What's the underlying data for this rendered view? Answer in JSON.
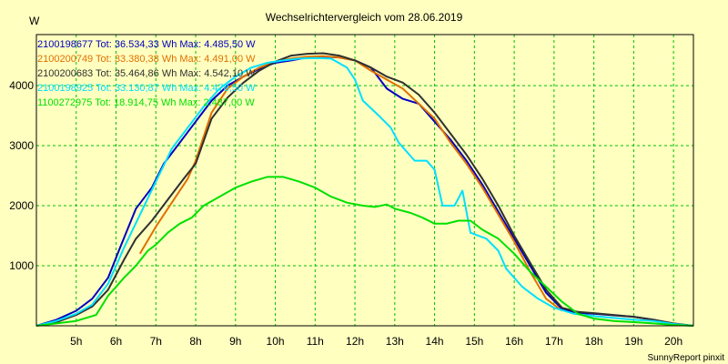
{
  "chart_data": {
    "type": "line",
    "title": "Wechselrichtervergleich vom 28.06.2019",
    "ylabel": "W",
    "xlabel": "",
    "footer": "SunnyReport pinxit",
    "xlim": [
      4.0,
      20.5
    ],
    "ylim": [
      0,
      4850
    ],
    "grid": true,
    "legend_position": "top-left",
    "x_ticks": [
      5,
      6,
      7,
      8,
      9,
      10,
      11,
      12,
      13,
      14,
      15,
      16,
      17,
      18,
      19,
      20
    ],
    "x_tick_labels": [
      "5h",
      "6h",
      "7h",
      "8h",
      "9h",
      "10h",
      "11h",
      "12h",
      "13h",
      "14h",
      "15h",
      "16h",
      "17h",
      "18h",
      "19h",
      "20h"
    ],
    "y_ticks": [
      1000,
      2000,
      3000,
      4000
    ],
    "y_tick_labels": [
      "1000",
      "2000",
      "3000",
      "4000"
    ],
    "series": [
      {
        "name": "2100198677",
        "legend": "2100198677 Tot: 36.534,33 Wh Max: 4.485,50 W",
        "color": "#0000c0",
        "points": [
          [
            4.0,
            0
          ],
          [
            4.5,
            100
          ],
          [
            5.0,
            250
          ],
          [
            5.4,
            450
          ],
          [
            5.8,
            800
          ],
          [
            6.1,
            1300
          ],
          [
            6.5,
            1950
          ],
          [
            6.9,
            2300
          ],
          [
            7.2,
            2700
          ],
          [
            7.6,
            3050
          ],
          [
            8.0,
            3400
          ],
          [
            8.4,
            3750
          ],
          [
            8.8,
            4000
          ],
          [
            9.2,
            4150
          ],
          [
            9.6,
            4280
          ],
          [
            10.0,
            4380
          ],
          [
            10.4,
            4420
          ],
          [
            10.8,
            4470
          ],
          [
            11.2,
            4480
          ],
          [
            11.6,
            4470
          ],
          [
            12.0,
            4420
          ],
          [
            12.4,
            4300
          ],
          [
            12.8,
            3950
          ],
          [
            13.2,
            3780
          ],
          [
            13.6,
            3700
          ],
          [
            14.0,
            3400
          ],
          [
            14.4,
            3100
          ],
          [
            14.8,
            2750
          ],
          [
            15.2,
            2350
          ],
          [
            15.6,
            1900
          ],
          [
            16.0,
            1450
          ],
          [
            16.4,
            1000
          ],
          [
            16.8,
            550
          ],
          [
            17.2,
            280
          ],
          [
            17.6,
            210
          ],
          [
            18.0,
            200
          ],
          [
            18.5,
            175
          ],
          [
            19.0,
            150
          ],
          [
            19.5,
            100
          ],
          [
            20.0,
            30
          ],
          [
            20.5,
            0
          ]
        ]
      },
      {
        "name": "2100200749",
        "legend": "2100200749 Tot: 33.380,38 Wh Max: 4.491,00 W",
        "color": "#e07000",
        "points": [
          [
            6.6,
            1200
          ],
          [
            7.0,
            1650
          ],
          [
            7.4,
            2050
          ],
          [
            7.8,
            2450
          ],
          [
            8.0,
            2750
          ],
          [
            8.4,
            3550
          ],
          [
            8.8,
            3950
          ],
          [
            9.2,
            4150
          ],
          [
            9.6,
            4300
          ],
          [
            10.0,
            4400
          ],
          [
            10.4,
            4450
          ],
          [
            10.8,
            4480
          ],
          [
            11.2,
            4490
          ],
          [
            11.6,
            4470
          ],
          [
            12.0,
            4420
          ],
          [
            12.4,
            4250
          ],
          [
            12.8,
            4100
          ],
          [
            13.2,
            3950
          ],
          [
            13.6,
            3700
          ],
          [
            14.0,
            3450
          ],
          [
            14.4,
            3050
          ],
          [
            14.8,
            2700
          ],
          [
            15.2,
            2300
          ],
          [
            15.6,
            1850
          ],
          [
            16.0,
            1400
          ],
          [
            16.4,
            900
          ],
          [
            16.8,
            450
          ],
          [
            17.2,
            250
          ]
        ]
      },
      {
        "name": "2100200683",
        "legend": "2100200683 Tot: 35.464,86 Wh Max: 4.542,10 W",
        "color": "#303030",
        "points": [
          [
            4.0,
            0
          ],
          [
            4.5,
            60
          ],
          [
            5.0,
            180
          ],
          [
            5.4,
            320
          ],
          [
            5.8,
            600
          ],
          [
            6.2,
            1100
          ],
          [
            6.5,
            1450
          ],
          [
            6.9,
            1750
          ],
          [
            7.3,
            2100
          ],
          [
            7.7,
            2450
          ],
          [
            8.0,
            2700
          ],
          [
            8.4,
            3450
          ],
          [
            8.8,
            3800
          ],
          [
            9.2,
            4050
          ],
          [
            9.6,
            4250
          ],
          [
            10.0,
            4400
          ],
          [
            10.4,
            4500
          ],
          [
            10.8,
            4530
          ],
          [
            11.2,
            4540
          ],
          [
            11.6,
            4500
          ],
          [
            12.0,
            4420
          ],
          [
            12.4,
            4300
          ],
          [
            12.8,
            4150
          ],
          [
            13.2,
            4050
          ],
          [
            13.6,
            3850
          ],
          [
            14.0,
            3550
          ],
          [
            14.4,
            3200
          ],
          [
            14.8,
            2850
          ],
          [
            15.2,
            2450
          ],
          [
            15.6,
            2000
          ],
          [
            16.0,
            1500
          ],
          [
            16.4,
            1050
          ],
          [
            16.8,
            600
          ],
          [
            17.2,
            300
          ],
          [
            17.6,
            230
          ],
          [
            18.0,
            210
          ],
          [
            18.5,
            180
          ],
          [
            19.0,
            150
          ],
          [
            19.5,
            100
          ],
          [
            20.0,
            40
          ],
          [
            20.5,
            0
          ]
        ]
      },
      {
        "name": "2100198925",
        "legend": "2100198925 Tot: 33.130,87 Wh Max: 4.478,50 W",
        "color": "#00e0ff",
        "points": [
          [
            4.0,
            0
          ],
          [
            4.5,
            80
          ],
          [
            5.0,
            200
          ],
          [
            5.4,
            350
          ],
          [
            5.8,
            700
          ],
          [
            6.2,
            1300
          ],
          [
            6.6,
            1850
          ],
          [
            7.0,
            2400
          ],
          [
            7.4,
            2950
          ],
          [
            7.8,
            3300
          ],
          [
            8.2,
            3650
          ],
          [
            8.6,
            3950
          ],
          [
            9.0,
            4150
          ],
          [
            9.4,
            4300
          ],
          [
            9.8,
            4380
          ],
          [
            10.2,
            4420
          ],
          [
            10.6,
            4450
          ],
          [
            11.0,
            4460
          ],
          [
            11.4,
            4450
          ],
          [
            11.8,
            4300
          ],
          [
            12.0,
            4100
          ],
          [
            12.2,
            3750
          ],
          [
            12.6,
            3500
          ],
          [
            12.9,
            3300
          ],
          [
            13.1,
            3050
          ],
          [
            13.5,
            2750
          ],
          [
            13.8,
            2750
          ],
          [
            14.0,
            2600
          ],
          [
            14.2,
            2000
          ],
          [
            14.5,
            2000
          ],
          [
            14.7,
            2250
          ],
          [
            14.9,
            1550
          ],
          [
            15.3,
            1450
          ],
          [
            15.6,
            1250
          ],
          [
            15.8,
            950
          ],
          [
            16.2,
            650
          ],
          [
            16.6,
            450
          ],
          [
            17.0,
            300
          ],
          [
            17.5,
            200
          ],
          [
            18.0,
            160
          ],
          [
            18.5,
            130
          ],
          [
            19.0,
            100
          ],
          [
            19.5,
            80
          ],
          [
            20.0,
            30
          ],
          [
            20.5,
            0
          ]
        ]
      },
      {
        "name": "1100272975",
        "legend": "1100272975 Tot: 18.914,75 Wh Max: 2.487,00 W",
        "color": "#00e000",
        "points": [
          [
            4.0,
            0
          ],
          [
            4.5,
            40
          ],
          [
            5.0,
            80
          ],
          [
            5.5,
            180
          ],
          [
            5.8,
            500
          ],
          [
            6.2,
            800
          ],
          [
            6.5,
            1000
          ],
          [
            6.8,
            1250
          ],
          [
            7.0,
            1350
          ],
          [
            7.3,
            1550
          ],
          [
            7.6,
            1700
          ],
          [
            7.9,
            1800
          ],
          [
            8.2,
            2000
          ],
          [
            8.6,
            2150
          ],
          [
            9.0,
            2300
          ],
          [
            9.4,
            2400
          ],
          [
            9.8,
            2480
          ],
          [
            10.2,
            2480
          ],
          [
            10.6,
            2400
          ],
          [
            11.0,
            2300
          ],
          [
            11.4,
            2150
          ],
          [
            11.8,
            2050
          ],
          [
            12.2,
            2000
          ],
          [
            12.5,
            1980
          ],
          [
            12.8,
            2020
          ],
          [
            13.0,
            1950
          ],
          [
            13.4,
            1880
          ],
          [
            13.7,
            1800
          ],
          [
            14.0,
            1700
          ],
          [
            14.3,
            1700
          ],
          [
            14.6,
            1750
          ],
          [
            14.9,
            1750
          ],
          [
            15.2,
            1600
          ],
          [
            15.6,
            1450
          ],
          [
            16.0,
            1200
          ],
          [
            16.4,
            900
          ],
          [
            16.8,
            650
          ],
          [
            17.2,
            400
          ],
          [
            17.6,
            200
          ],
          [
            18.0,
            120
          ],
          [
            18.5,
            80
          ],
          [
            19.0,
            60
          ],
          [
            19.5,
            40
          ],
          [
            20.0,
            15
          ],
          [
            20.5,
            0
          ]
        ]
      }
    ]
  }
}
